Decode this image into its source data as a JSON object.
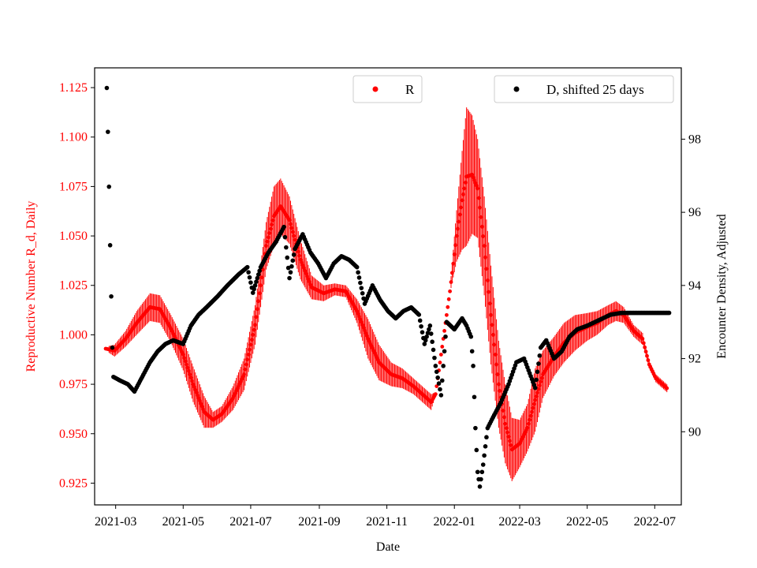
{
  "chart_data": {
    "type": "scatter",
    "xlabel": "Date",
    "ylabel_left": "Reproductive Number R_d, Daily",
    "ylabel_right": "Encounter Density, Adjusted",
    "x_range": [
      "2021-02-10",
      "2022-07-25"
    ],
    "ylim_left": [
      0.914,
      1.135
    ],
    "ylim_right": [
      88.0,
      99.95
    ],
    "x_ticks": [
      {
        "date": "2021-03-01",
        "label": "2021-03"
      },
      {
        "date": "2021-05-01",
        "label": "2021-05"
      },
      {
        "date": "2021-07-01",
        "label": "2021-07"
      },
      {
        "date": "2021-09-01",
        "label": "2021-09"
      },
      {
        "date": "2021-11-01",
        "label": "2021-11"
      },
      {
        "date": "2022-01-01",
        "label": "2022-01"
      },
      {
        "date": "2022-03-01",
        "label": "2022-03"
      },
      {
        "date": "2022-05-01",
        "label": "2022-05"
      },
      {
        "date": "2022-07-01",
        "label": "2022-07"
      }
    ],
    "y_ticks_left": [
      {
        "value": 0.925,
        "label": "0.925"
      },
      {
        "value": 0.95,
        "label": "0.950"
      },
      {
        "value": 0.975,
        "label": "0.975"
      },
      {
        "value": 1.0,
        "label": "1.000"
      },
      {
        "value": 1.025,
        "label": "1.025"
      },
      {
        "value": 1.05,
        "label": "1.050"
      },
      {
        "value": 1.075,
        "label": "1.075"
      },
      {
        "value": 1.1,
        "label": "1.100"
      },
      {
        "value": 1.125,
        "label": "1.125"
      }
    ],
    "y_ticks_right": [
      {
        "value": 90,
        "label": "90"
      },
      {
        "value": 92,
        "label": "92"
      },
      {
        "value": 94,
        "label": "94"
      },
      {
        "value": 96,
        "label": "96"
      },
      {
        "value": 98,
        "label": "98"
      }
    ],
    "legend": {
      "r_label": "R",
      "d_label": "D, shifted 25 days",
      "placement": "upper center and upper right"
    },
    "series": [
      {
        "name": "R",
        "axis": "left",
        "color": "#ff0000",
        "marker": "dot with daily vertical error bars",
        "points": [
          [
            "2021-02-20",
            0.993,
            0.001
          ],
          [
            "2021-02-28",
            0.992,
            0.003
          ],
          [
            "2021-03-10",
            0.998,
            0.004
          ],
          [
            "2021-03-20",
            1.006,
            0.006
          ],
          [
            "2021-04-01",
            1.014,
            0.007
          ],
          [
            "2021-04-10",
            1.013,
            0.007
          ],
          [
            "2021-04-20",
            1.003,
            0.007
          ],
          [
            "2021-05-01",
            0.99,
            0.008
          ],
          [
            "2021-05-10",
            0.975,
            0.009
          ],
          [
            "2021-05-20",
            0.961,
            0.008
          ],
          [
            "2021-05-28",
            0.957,
            0.004
          ],
          [
            "2021-06-05",
            0.96,
            0.004
          ],
          [
            "2021-06-15",
            0.968,
            0.006
          ],
          [
            "2021-06-25",
            0.98,
            0.008
          ],
          [
            "2021-07-05",
            1.005,
            0.01
          ],
          [
            "2021-07-15",
            1.045,
            0.012
          ],
          [
            "2021-07-22",
            1.06,
            0.015
          ],
          [
            "2021-07-28",
            1.065,
            0.014
          ],
          [
            "2021-08-05",
            1.058,
            0.012
          ],
          [
            "2021-08-15",
            1.038,
            0.01
          ],
          [
            "2021-08-25",
            1.024,
            0.006
          ],
          [
            "2021-09-05",
            1.021,
            0.004
          ],
          [
            "2021-09-15",
            1.023,
            0.003
          ],
          [
            "2021-09-25",
            1.022,
            0.003
          ],
          [
            "2021-10-05",
            1.012,
            0.006
          ],
          [
            "2021-10-15",
            0.998,
            0.01
          ],
          [
            "2021-10-25",
            0.986,
            0.009
          ],
          [
            "2021-11-05",
            0.98,
            0.006
          ],
          [
            "2021-11-15",
            0.978,
            0.005
          ],
          [
            "2021-11-25",
            0.974,
            0.004
          ],
          [
            "2021-12-05",
            0.969,
            0.004
          ],
          [
            "2021-12-11",
            0.966,
            0.004
          ],
          [
            "2021-12-15",
            0.97,
            0.001
          ],
          [
            "2021-12-22",
            0.998,
            0.001
          ],
          [
            "2021-12-28",
            1.022,
            0.001
          ],
          [
            "2022-01-03",
            1.05,
            0.013
          ],
          [
            "2022-01-08",
            1.068,
            0.025
          ],
          [
            "2022-01-12",
            1.08,
            0.035
          ],
          [
            "2022-01-17",
            1.081,
            0.03
          ],
          [
            "2022-01-22",
            1.074,
            0.025
          ],
          [
            "2022-01-28",
            1.045,
            0.025
          ],
          [
            "2022-02-03",
            1.01,
            0.025
          ],
          [
            "2022-02-10",
            0.975,
            0.022
          ],
          [
            "2022-02-16",
            0.955,
            0.02
          ],
          [
            "2022-02-22",
            0.942,
            0.016
          ],
          [
            "2022-03-01",
            0.945,
            0.012
          ],
          [
            "2022-03-08",
            0.953,
            0.012
          ],
          [
            "2022-03-15",
            0.967,
            0.016
          ],
          [
            "2022-03-22",
            0.98,
            0.012
          ],
          [
            "2022-04-01",
            0.989,
            0.01
          ],
          [
            "2022-04-10",
            0.996,
            0.01
          ],
          [
            "2022-04-20",
            1.001,
            0.009
          ],
          [
            "2022-05-01",
            1.004,
            0.007
          ],
          [
            "2022-05-10",
            1.006,
            0.006
          ],
          [
            "2022-05-20",
            1.01,
            0.005
          ],
          [
            "2022-05-27",
            1.012,
            0.005
          ],
          [
            "2022-06-03",
            1.01,
            0.004
          ],
          [
            "2022-06-12",
            1.002,
            0.003
          ],
          [
            "2022-06-20",
            0.998,
            0.003
          ],
          [
            "2022-06-26",
            0.985,
            0.002
          ],
          [
            "2022-07-02",
            0.978,
            0.002
          ],
          [
            "2022-07-08",
            0.975,
            0.002
          ],
          [
            "2022-07-12",
            0.973,
            0.002
          ]
        ]
      },
      {
        "name": "D, shifted 25 days",
        "axis": "right",
        "color": "#000000",
        "marker": "dot",
        "points": [
          [
            "2021-02-21",
            99.4
          ],
          [
            "2021-02-22",
            98.2
          ],
          [
            "2021-02-23",
            96.7
          ],
          [
            "2021-02-24",
            95.1
          ],
          [
            "2021-02-25",
            93.7
          ],
          [
            "2021-02-26",
            92.3
          ],
          [
            "2021-02-27",
            91.5
          ],
          [
            "2021-03-05",
            91.4
          ],
          [
            "2021-03-12",
            91.3
          ],
          [
            "2021-03-18",
            91.1
          ],
          [
            "2021-03-25",
            91.5
          ],
          [
            "2021-04-01",
            91.9
          ],
          [
            "2021-04-08",
            92.2
          ],
          [
            "2021-04-15",
            92.4
          ],
          [
            "2021-04-22",
            92.5
          ],
          [
            "2021-05-01",
            92.4
          ],
          [
            "2021-05-08",
            92.9
          ],
          [
            "2021-05-15",
            93.2
          ],
          [
            "2021-05-22",
            93.4
          ],
          [
            "2021-06-01",
            93.7
          ],
          [
            "2021-06-10",
            94.0
          ],
          [
            "2021-06-20",
            94.3
          ],
          [
            "2021-06-28",
            94.5
          ],
          [
            "2021-07-03",
            93.8
          ],
          [
            "2021-07-10",
            94.5
          ],
          [
            "2021-07-17",
            94.9
          ],
          [
            "2021-07-24",
            95.2
          ],
          [
            "2021-07-31",
            95.6
          ],
          [
            "2021-08-05",
            94.2
          ],
          [
            "2021-08-10",
            95.0
          ],
          [
            "2021-08-17",
            95.4
          ],
          [
            "2021-08-24",
            94.9
          ],
          [
            "2021-08-31",
            94.6
          ],
          [
            "2021-09-07",
            94.2
          ],
          [
            "2021-09-14",
            94.6
          ],
          [
            "2021-09-21",
            94.8
          ],
          [
            "2021-09-28",
            94.7
          ],
          [
            "2021-10-05",
            94.5
          ],
          [
            "2021-10-12",
            93.5
          ],
          [
            "2021-10-19",
            94.0
          ],
          [
            "2021-10-26",
            93.6
          ],
          [
            "2021-11-02",
            93.3
          ],
          [
            "2021-11-09",
            93.1
          ],
          [
            "2021-11-16",
            93.3
          ],
          [
            "2021-11-23",
            93.4
          ],
          [
            "2021-11-30",
            93.2
          ],
          [
            "2021-12-05",
            92.4
          ],
          [
            "2021-12-10",
            92.9
          ],
          [
            "2021-12-15",
            91.8
          ],
          [
            "2021-12-20",
            91.0
          ],
          [
            "2021-12-25",
            93.0
          ],
          [
            "2022-01-01",
            92.8
          ],
          [
            "2022-01-08",
            93.1
          ],
          [
            "2022-01-12",
            92.9
          ],
          [
            "2022-01-16",
            92.6
          ],
          [
            "2022-01-18",
            91.8
          ],
          [
            "2022-01-20",
            90.1
          ],
          [
            "2022-01-22",
            88.9
          ],
          [
            "2022-01-24",
            88.5
          ],
          [
            "2022-01-27",
            89.1
          ],
          [
            "2022-01-31",
            90.1
          ],
          [
            "2022-02-05",
            90.4
          ],
          [
            "2022-02-12",
            90.8
          ],
          [
            "2022-02-19",
            91.3
          ],
          [
            "2022-02-26",
            91.9
          ],
          [
            "2022-03-05",
            92.0
          ],
          [
            "2022-03-10",
            91.6
          ],
          [
            "2022-03-15",
            91.2
          ],
          [
            "2022-03-20",
            92.3
          ],
          [
            "2022-03-25",
            92.5
          ],
          [
            "2022-04-01",
            92.0
          ],
          [
            "2022-04-08",
            92.2
          ],
          [
            "2022-04-15",
            92.6
          ],
          [
            "2022-04-22",
            92.8
          ],
          [
            "2022-05-01",
            92.9
          ],
          [
            "2022-05-08",
            93.0
          ],
          [
            "2022-05-15",
            93.1
          ],
          [
            "2022-05-22",
            93.2
          ],
          [
            "2022-06-01",
            93.25
          ],
          [
            "2022-06-10",
            93.25
          ],
          [
            "2022-06-20",
            93.25
          ],
          [
            "2022-06-30",
            93.25
          ],
          [
            "2022-07-08",
            93.25
          ],
          [
            "2022-07-14",
            93.25
          ]
        ]
      }
    ]
  }
}
